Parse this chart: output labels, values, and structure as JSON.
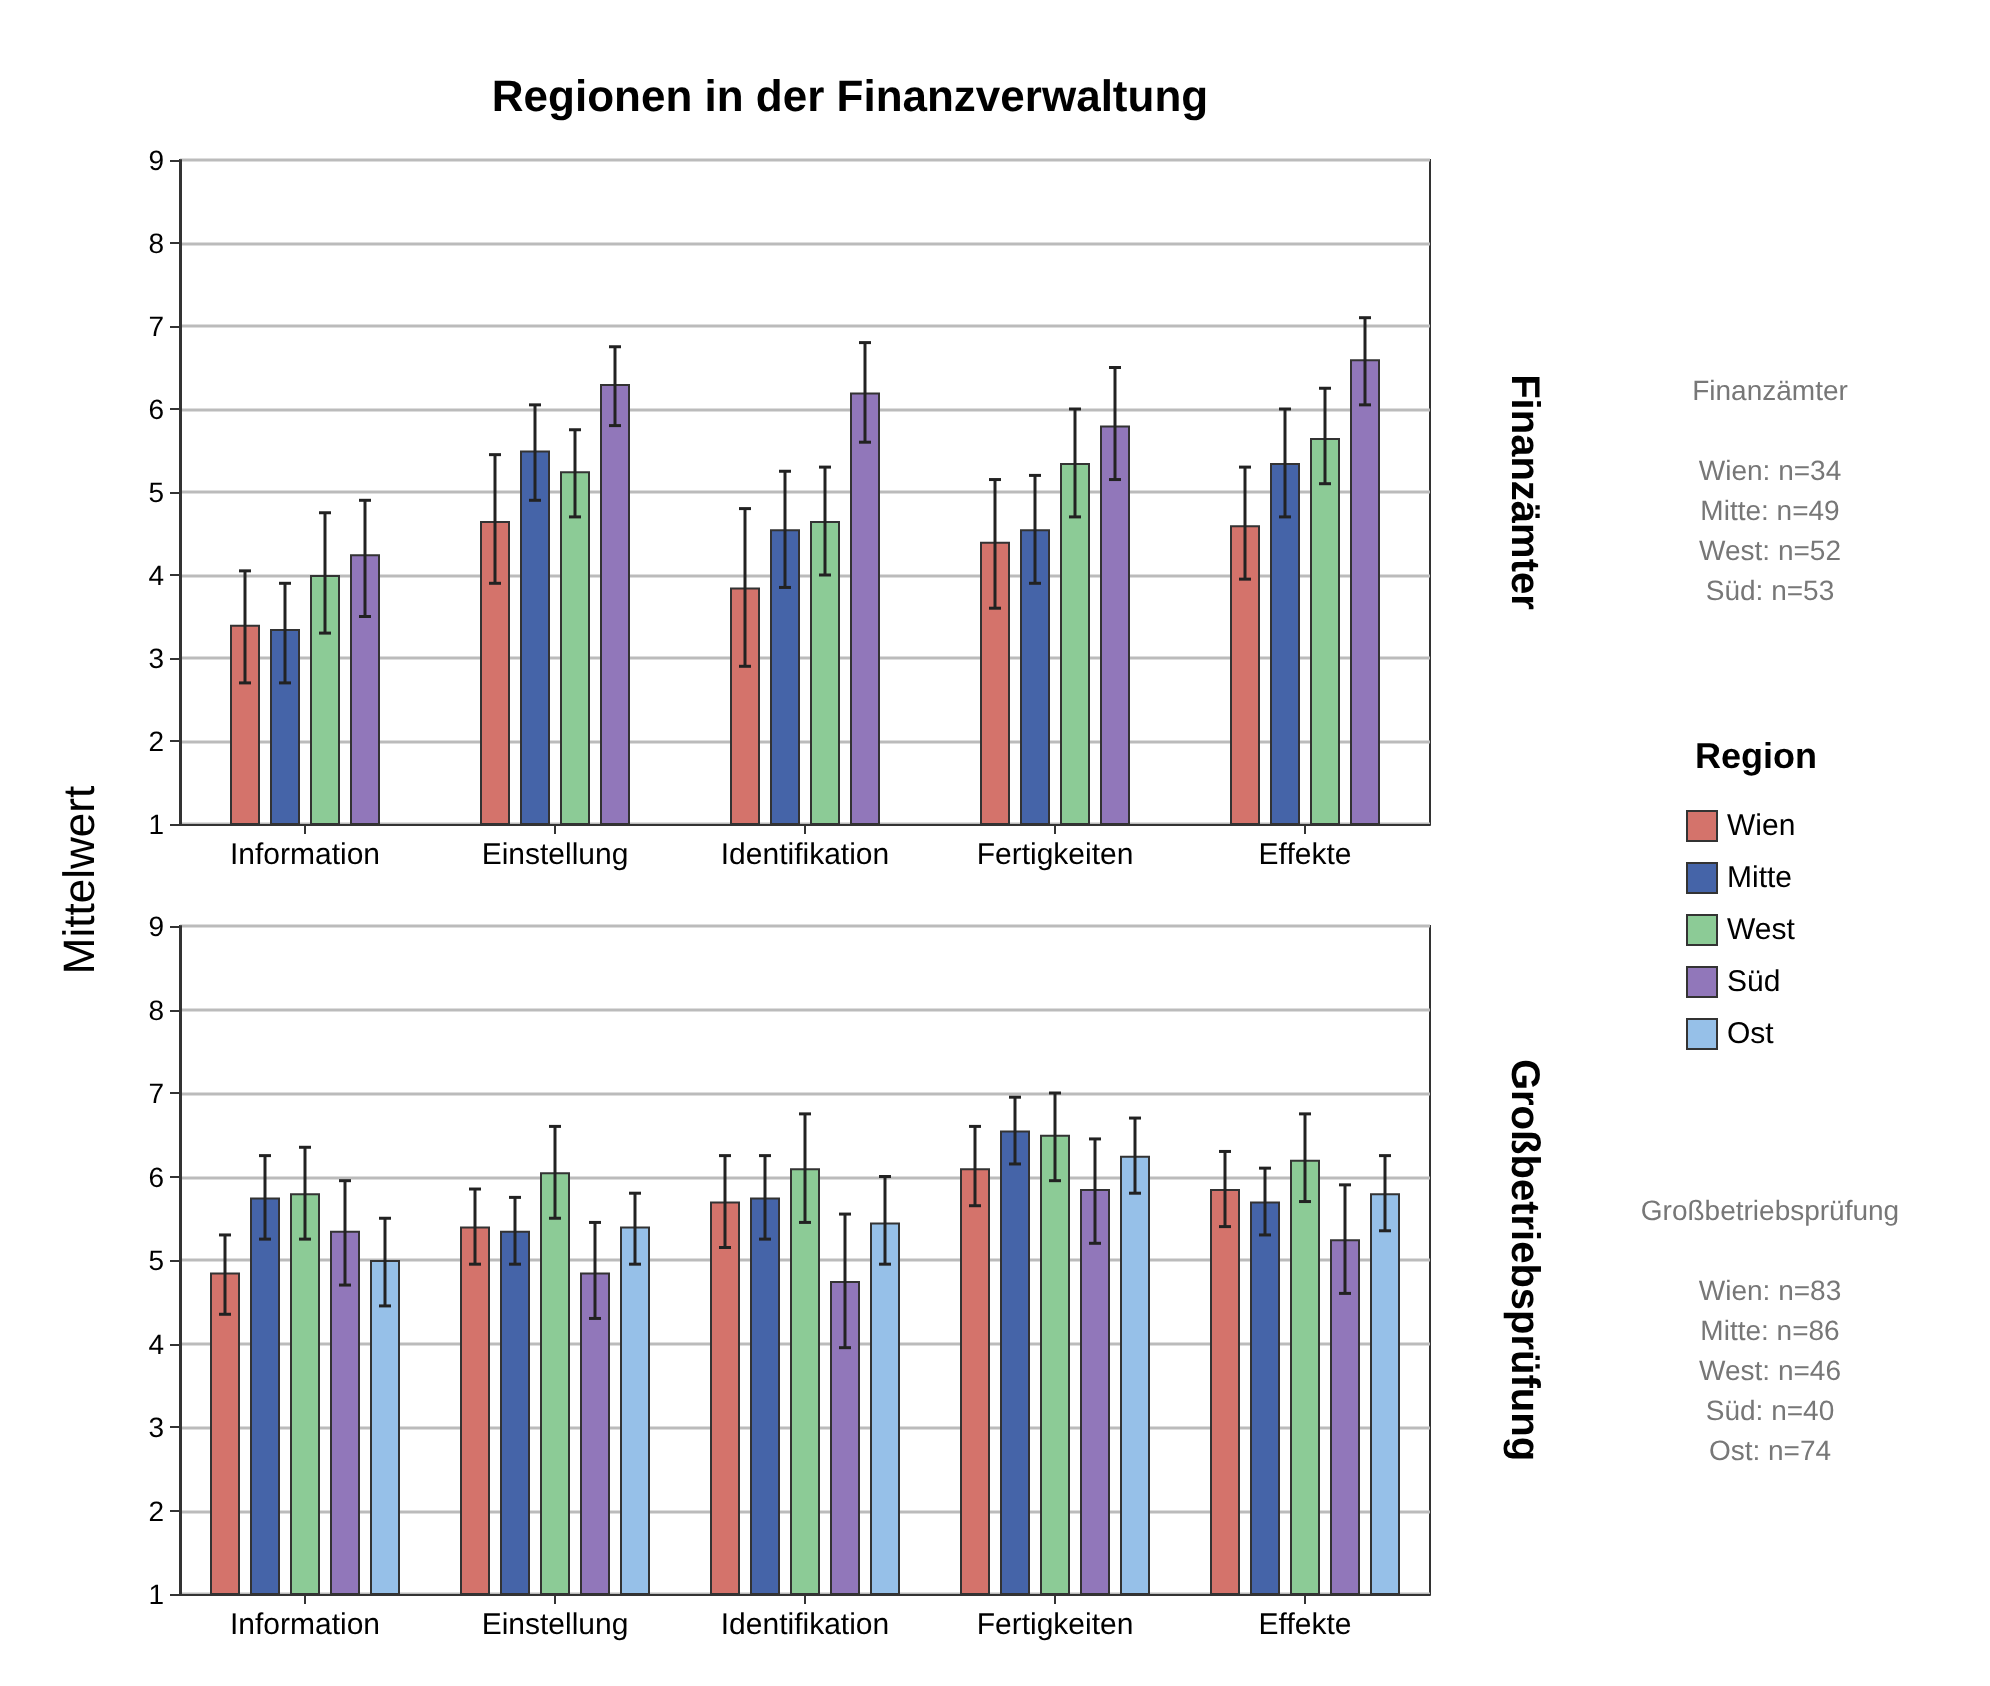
{
  "chart_data": [
    {
      "type": "bar",
      "title": "Regionen in der Finanzverwaltung",
      "ylabel": "Mittelwert",
      "y2label": "Finanzämter",
      "categories": [
        "Information",
        "Einstellung",
        "Identifikation",
        "Fertigkeiten",
        "Effekte"
      ],
      "series": [
        {
          "color": "#d4736b",
          "values": [
            3.4,
            4.65,
            3.85,
            4.4,
            4.6
          ],
          "errors": [
            [
              2.7,
              4.05
            ],
            [
              3.9,
              5.45
            ],
            [
              2.9,
              4.8
            ],
            [
              3.6,
              5.15
            ],
            [
              3.95,
              5.3
            ]
          ]
        },
        {
          "color": "#4564a8",
          "values": [
            3.35,
            5.5,
            4.55,
            4.55,
            5.35
          ],
          "errors": [
            [
              2.7,
              3.9
            ],
            [
              4.9,
              6.05
            ],
            [
              3.85,
              5.25
            ],
            [
              3.9,
              5.2
            ],
            [
              4.7,
              6.0
            ]
          ]
        },
        {
          "color": "#8ccb96",
          "values": [
            4.0,
            5.25,
            4.65,
            5.35,
            5.65
          ],
          "errors": [
            [
              3.3,
              4.75
            ],
            [
              4.7,
              5.75
            ],
            [
              4.0,
              5.3
            ],
            [
              4.7,
              6.0
            ],
            [
              5.1,
              6.25
            ]
          ]
        },
        {
          "color": "#9177ba",
          "values": [
            4.25,
            6.3,
            6.2,
            5.8,
            6.6
          ],
          "errors": [
            [
              3.5,
              4.9
            ],
            [
              5.8,
              6.75
            ],
            [
              5.6,
              6.8
            ],
            [
              5.15,
              6.5
            ],
            [
              6.05,
              7.1
            ]
          ]
        }
      ],
      "ylim": [
        1,
        9
      ],
      "yticks": [
        1,
        2,
        3,
        4,
        5,
        6,
        7,
        8,
        9
      ],
      "grid": "y",
      "annotations": [
        "Finanzämter",
        "Wien: n=34",
        "Mitte: n=49",
        "West: n=52",
        "Süd: n=53"
      ]
    },
    {
      "type": "bar",
      "y2label": "Großbetriebsprüfung",
      "legend": "right",
      "legend_title": "Region",
      "categories": [
        "Information",
        "Einstellung",
        "Identifikation",
        "Fertigkeiten",
        "Effekte"
      ],
      "series": [
        {
          "name": "Wien",
          "color": "#d4736b",
          "values": [
            4.85,
            5.4,
            5.7,
            6.1,
            5.85
          ],
          "errors": [
            [
              4.35,
              5.3
            ],
            [
              4.95,
              5.85
            ],
            [
              5.15,
              6.25
            ],
            [
              5.65,
              6.6
            ],
            [
              5.4,
              6.3
            ]
          ]
        },
        {
          "name": "Mitte",
          "color": "#4564a8",
          "values": [
            5.75,
            5.35,
            5.75,
            6.55,
            5.7
          ],
          "errors": [
            [
              5.25,
              6.25
            ],
            [
              4.95,
              5.75
            ],
            [
              5.25,
              6.25
            ],
            [
              6.15,
              6.95
            ],
            [
              5.3,
              6.1
            ]
          ]
        },
        {
          "name": "West",
          "color": "#8ccb96",
          "values": [
            5.8,
            6.05,
            6.1,
            6.5,
            6.2
          ],
          "errors": [
            [
              5.25,
              6.35
            ],
            [
              5.5,
              6.6
            ],
            [
              5.45,
              6.75
            ],
            [
              5.95,
              7.0
            ],
            [
              5.7,
              6.75
            ]
          ]
        },
        {
          "name": "Süd",
          "color": "#9177ba",
          "values": [
            5.35,
            4.85,
            4.75,
            5.85,
            5.25
          ],
          "errors": [
            [
              4.7,
              5.95
            ],
            [
              4.3,
              5.45
            ],
            [
              3.95,
              5.55
            ],
            [
              5.2,
              6.45
            ],
            [
              4.6,
              5.9
            ]
          ]
        },
        {
          "name": "Ost",
          "color": "#96c0e8",
          "values": [
            5.0,
            5.4,
            5.45,
            6.25,
            5.8
          ],
          "errors": [
            [
              4.45,
              5.5
            ],
            [
              4.95,
              5.8
            ],
            [
              4.95,
              6.0
            ],
            [
              5.8,
              6.7
            ],
            [
              5.35,
              6.25
            ]
          ]
        }
      ],
      "ylim": [
        1,
        9
      ],
      "yticks": [
        1,
        2,
        3,
        4,
        5,
        6,
        7,
        8,
        9
      ],
      "grid": "y",
      "annotations": [
        "Großbetriebsprüfung",
        "Wien: n=83",
        "Mitte: n=86",
        "West: n=46",
        "Süd: n=40",
        "Ost: n=74"
      ]
    }
  ]
}
